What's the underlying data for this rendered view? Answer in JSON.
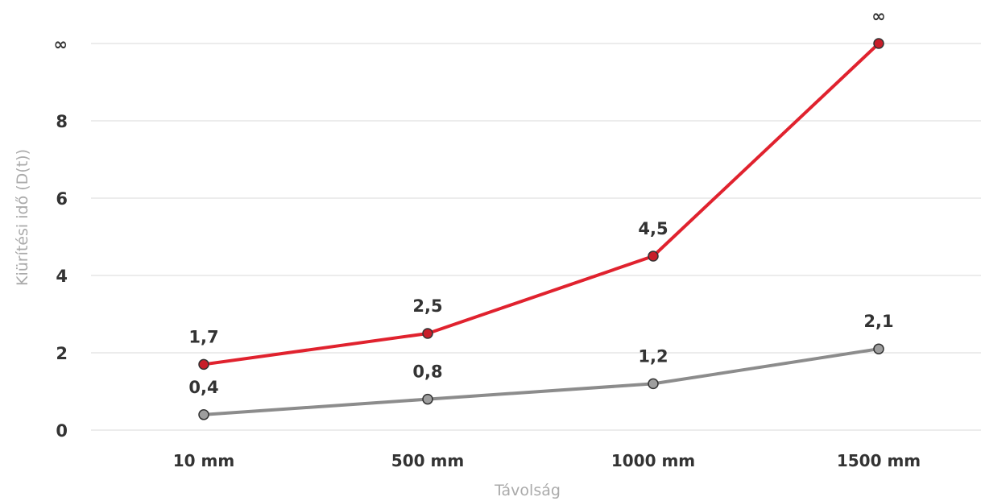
{
  "chart_data": {
    "type": "line",
    "categories": [
      "10 mm",
      "500 mm",
      "1000 mm",
      "1500 mm"
    ],
    "xlabel": "Távolság",
    "ylabel": "Kiürítési idő (D(t))",
    "ylim": [
      0,
      10
    ],
    "yticks": [
      {
        "value": 0,
        "label": "0"
      },
      {
        "value": 2,
        "label": "2"
      },
      {
        "value": 4,
        "label": "4"
      },
      {
        "value": 6,
        "label": "6"
      },
      {
        "value": 8,
        "label": "8"
      },
      {
        "value": 10,
        "label": "∞"
      }
    ],
    "grid": true,
    "legend": "none",
    "series": [
      {
        "color": "#e0222e",
        "marker_fill": "#c81e2a",
        "values": [
          1.7,
          2.5,
          4.5,
          10
        ],
        "labels": [
          "1,7",
          "2,5",
          "4,5",
          "∞"
        ]
      },
      {
        "color": "#8c8c8c",
        "marker_fill": "#9e9e9e",
        "values": [
          0.4,
          0.8,
          1.2,
          2.1
        ],
        "labels": [
          "0,4",
          "0,8",
          "1,2",
          "2,1"
        ]
      }
    ]
  }
}
